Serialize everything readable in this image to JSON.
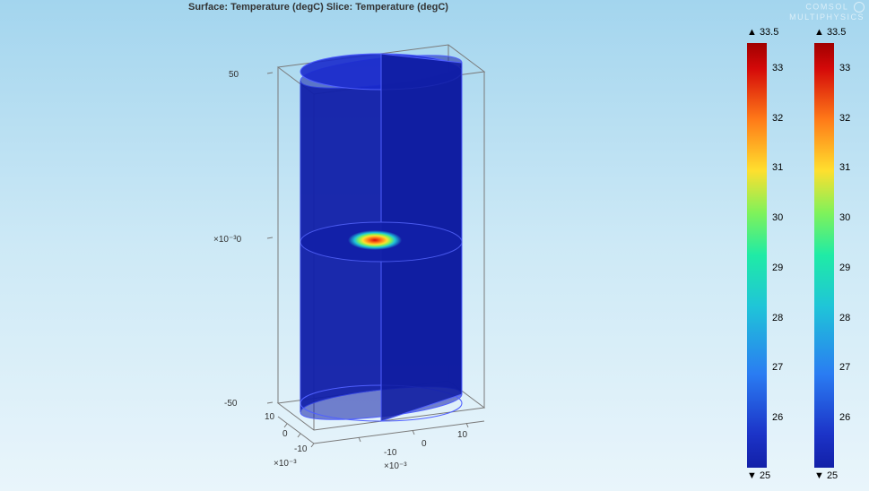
{
  "title": "Surface: Temperature (degC)  Slice: Temperature (degC)",
  "watermark": {
    "line1": "COMSOL",
    "line2": "MULTIPHYSICS"
  },
  "axes": {
    "z_exponent_label": "×10⁻³",
    "z_ticks_left": [
      "50",
      "0",
      "-50"
    ],
    "x_exponent_label": "×10⁻³",
    "x_ticks": [
      "-10",
      "0",
      "10"
    ],
    "y_exponent_label": "×10⁻³",
    "y_ticks": [
      "-10",
      "0",
      "10"
    ]
  },
  "cylinder": {
    "fill_color": "#1220a8",
    "edge_color": "#5060ff",
    "box_edge_color": "#7a7a7a",
    "slice_fill": "#1220a8",
    "hotspot_colors": [
      "#1220a8",
      "#1fc5d8",
      "#7ff25a",
      "#ffdf2e",
      "#ff7a18",
      "#d40909"
    ]
  },
  "colorbars": [
    {
      "x": 833,
      "max_label": "▲ 33.5",
      "min_label": "▼ 25",
      "min": 25,
      "max": 33.5,
      "ticks": [
        "33",
        "32",
        "31",
        "30",
        "29",
        "28",
        "27",
        "26"
      ],
      "gradient": [
        {
          "p": 0,
          "c": "#A00000"
        },
        {
          "p": 6,
          "c": "#D40909"
        },
        {
          "p": 18,
          "c": "#FF7A18"
        },
        {
          "p": 30,
          "c": "#FFDF2E"
        },
        {
          "p": 40,
          "c": "#7FF25A"
        },
        {
          "p": 50,
          "c": "#1FEBA6"
        },
        {
          "p": 62,
          "c": "#1FC5D8"
        },
        {
          "p": 78,
          "c": "#2A7CF2"
        },
        {
          "p": 92,
          "c": "#1C34C8"
        },
        {
          "p": 100,
          "c": "#1220A8"
        }
      ]
    },
    {
      "x": 908,
      "max_label": "▲ 33.5",
      "min_label": "▼ 25",
      "min": 25,
      "max": 33.5,
      "ticks": [
        "33",
        "32",
        "31",
        "30",
        "29",
        "28",
        "27",
        "26"
      ],
      "gradient": [
        {
          "p": 0,
          "c": "#A00000"
        },
        {
          "p": 6,
          "c": "#D40909"
        },
        {
          "p": 18,
          "c": "#FF7A18"
        },
        {
          "p": 30,
          "c": "#FFDF2E"
        },
        {
          "p": 40,
          "c": "#7FF25A"
        },
        {
          "p": 50,
          "c": "#1FEBA6"
        },
        {
          "p": 62,
          "c": "#1FC5D8"
        },
        {
          "p": 78,
          "c": "#2A7CF2"
        },
        {
          "p": 92,
          "c": "#1C34C8"
        },
        {
          "p": 100,
          "c": "#1220A8"
        }
      ]
    }
  ]
}
